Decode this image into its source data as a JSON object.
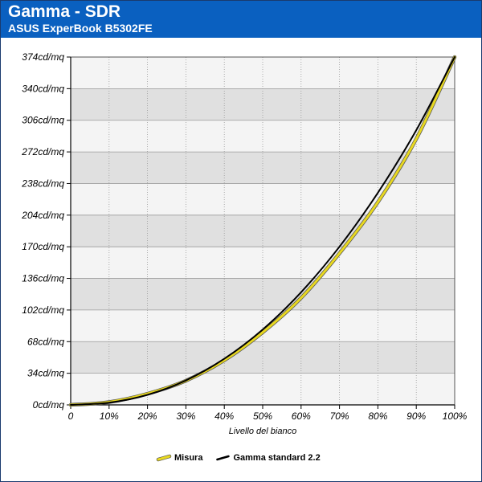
{
  "header": {
    "title": "Gamma - SDR",
    "subtitle": "ASUS ExperBook B5302FE"
  },
  "colors": {
    "header_bg": "#0a60c0",
    "band_dark": "#e0e0e0",
    "band_light": "#f4f4f4",
    "misura": "#e8d820",
    "standard": "#000000"
  },
  "chart_data": {
    "type": "line",
    "title": "Gamma - SDR",
    "subtitle": "ASUS ExperBook B5302FE",
    "xlabel": "Livello del bianco",
    "ylabel": "",
    "x": [
      0,
      10,
      20,
      30,
      40,
      50,
      60,
      70,
      80,
      90,
      100
    ],
    "x_tick_labels": [
      "0",
      "10%",
      "20%",
      "30%",
      "40%",
      "50%",
      "60%",
      "70%",
      "80%",
      "90%",
      "100%"
    ],
    "y_tick_labels": [
      "0cd/mq",
      "34cd/mq",
      "68cd/mq",
      "102cd/mq",
      "136cd/mq",
      "170cd/mq",
      "204cd/mq",
      "238cd/mq",
      "272cd/mq",
      "306cd/mq",
      "340cd/mq",
      "374cd/mq"
    ],
    "xlim": [
      0,
      100
    ],
    "ylim": [
      0,
      374
    ],
    "grid": true,
    "legend_position": "bottom",
    "series": [
      {
        "name": "Misura",
        "color": "#e8d820",
        "values": [
          0,
          3,
          12,
          26,
          48,
          78,
          115,
          163,
          218,
          286,
          374
        ]
      },
      {
        "name": "Gamma standard 2.2",
        "color": "#000000",
        "values": [
          0,
          2.4,
          10.8,
          26.3,
          49.6,
          81,
          121.1,
          170.1,
          228.1,
          295.4,
          374
        ]
      }
    ]
  }
}
